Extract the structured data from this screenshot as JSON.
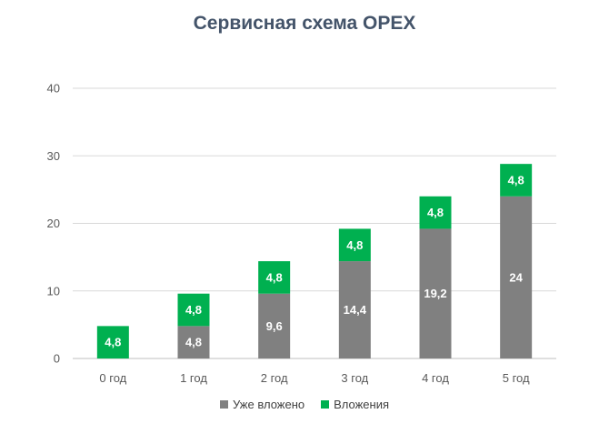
{
  "chart_data": {
    "type": "bar",
    "stacked": true,
    "title": "Сервисная схема OPEX",
    "xlabel": "",
    "ylabel": "",
    "ylim": [
      0,
      40
    ],
    "yticks": [
      0,
      10,
      20,
      30,
      40
    ],
    "grid": true,
    "legend_position": "bottom",
    "categories": [
      "0 год",
      "1 год",
      "2 год",
      "3 год",
      "4 год",
      "5 год"
    ],
    "series": [
      {
        "name": "Уже вложено",
        "color": "#808080",
        "values": [
          0,
          4.8,
          9.6,
          14.4,
          19.2,
          24
        ],
        "labels": [
          "",
          "4,8",
          "9,6",
          "14,4",
          "19,2",
          "24"
        ]
      },
      {
        "name": "Вложения",
        "color": "#00b050",
        "values": [
          4.8,
          4.8,
          4.8,
          4.8,
          4.8,
          4.8
        ],
        "labels": [
          "4,8",
          "4,8",
          "4,8",
          "4,8",
          "4,8",
          "4,8"
        ]
      }
    ]
  }
}
